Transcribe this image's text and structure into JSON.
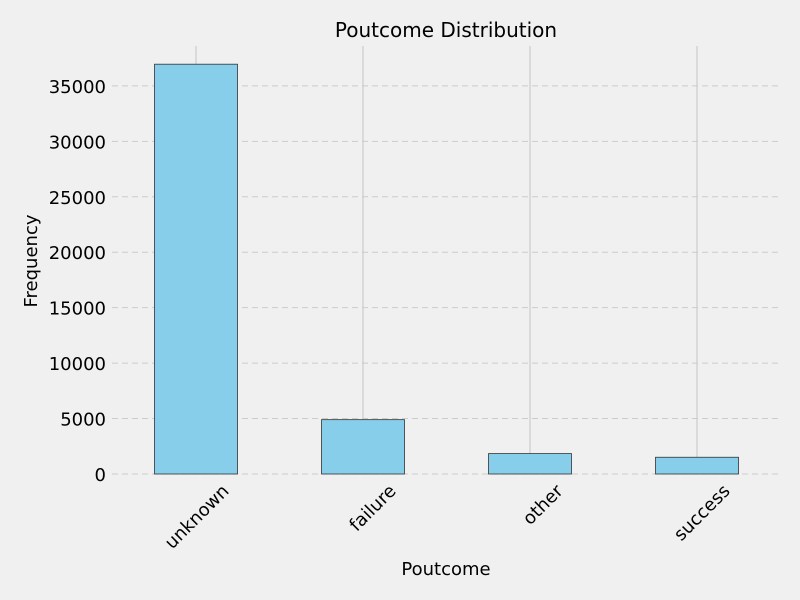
{
  "chart_data": {
    "type": "bar",
    "title": "Poutcome Distribution",
    "xlabel": "Poutcome",
    "ylabel": "Frequency",
    "categories": [
      "unknown",
      "failure",
      "other",
      "success"
    ],
    "values": [
      36959,
      4901,
      1840,
      1511
    ],
    "ylim": [
      0,
      38600
    ],
    "yticks": [
      0,
      5000,
      10000,
      15000,
      20000,
      25000,
      30000,
      35000
    ],
    "grid": true,
    "bar_color": "#87ceeb",
    "edge_color": "#333333"
  }
}
